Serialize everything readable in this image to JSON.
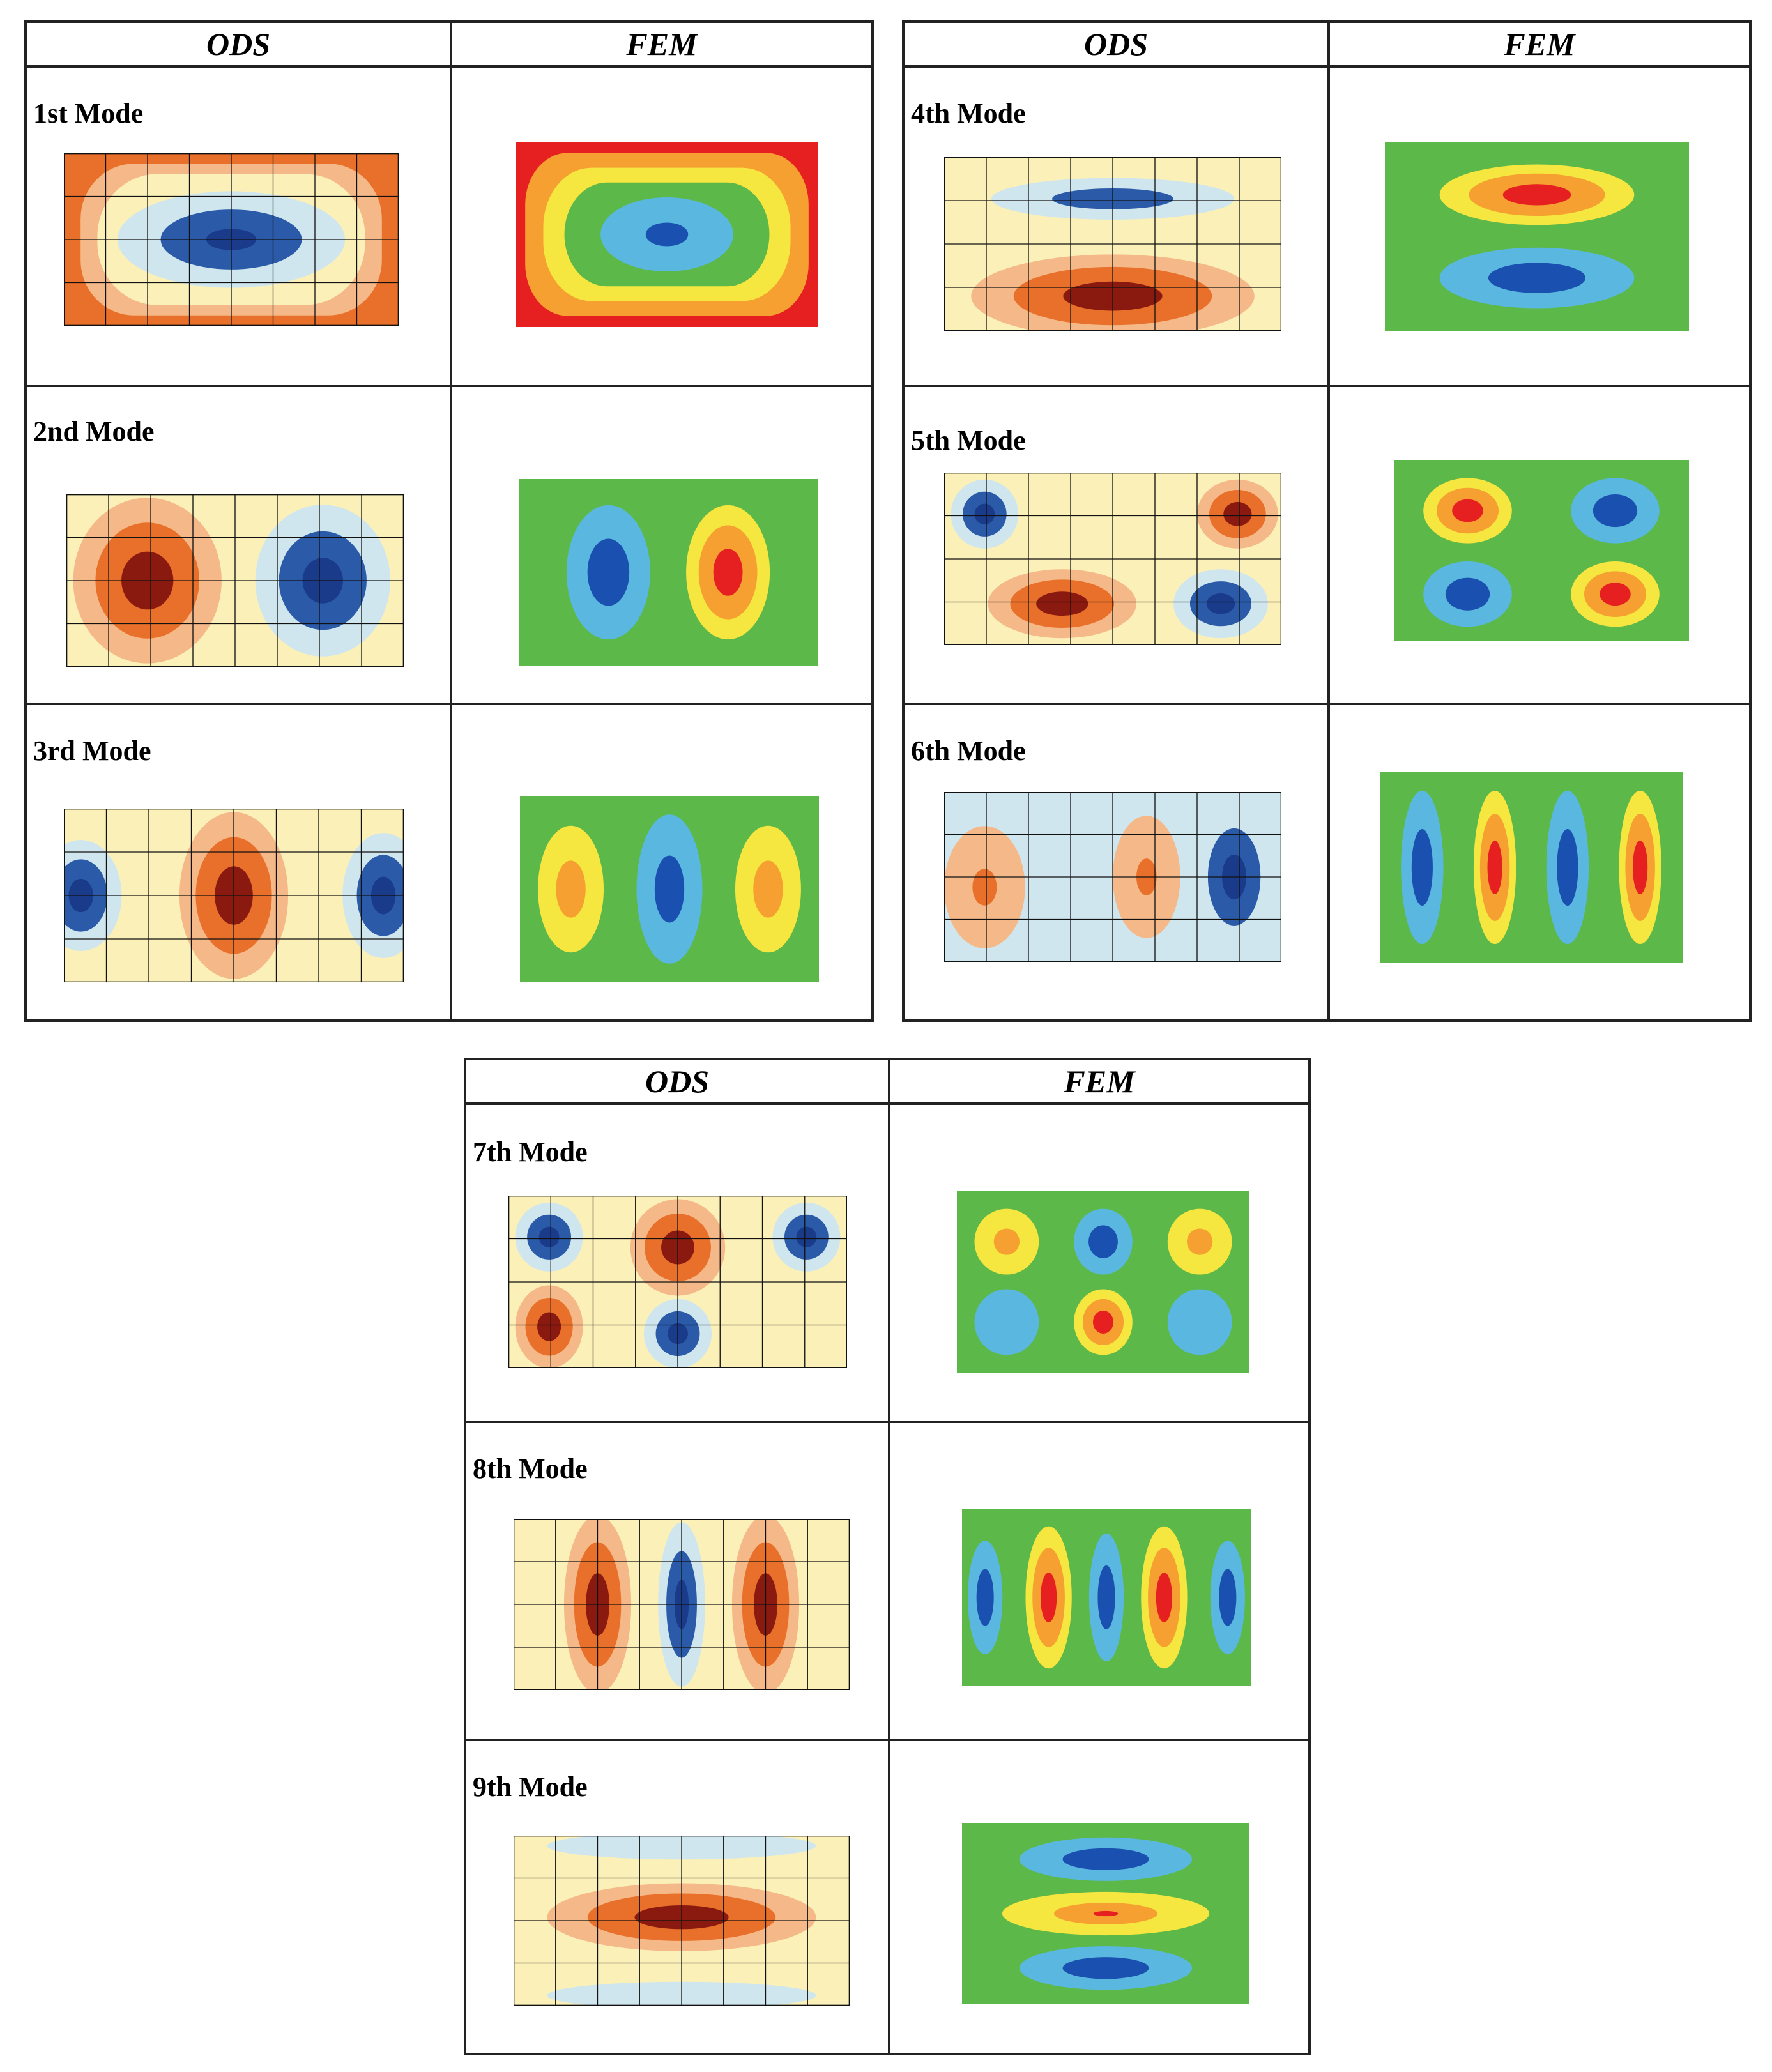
{
  "figure": {
    "column_headers": [
      "ODS",
      "FEM"
    ],
    "modes": [
      {
        "label": "1st Mode",
        "ods": "ods1",
        "fem": "fem1"
      },
      {
        "label": "2nd Mode",
        "ods": "ods2",
        "fem": "fem2"
      },
      {
        "label": "3rd Mode",
        "ods": "ods3",
        "fem": "fem3"
      },
      {
        "label": "4th Mode",
        "ods": "ods4",
        "fem": "fem4"
      },
      {
        "label": "5th Mode",
        "ods": "ods5",
        "fem": "fem5"
      },
      {
        "label": "6th Mode",
        "ods": "ods6",
        "fem": "fem6"
      },
      {
        "label": "7th Mode",
        "ods": "ods7",
        "fem": "fem7"
      },
      {
        "label": "8th Mode",
        "ods": "ods8",
        "fem": "fem8"
      },
      {
        "label": "9th Mode",
        "ods": "ods9",
        "fem": "fem9"
      }
    ]
  },
  "colors": {
    "fem_background": "#5cb848",
    "fem_red": "#e62020",
    "fem_orange": "#f5a030",
    "fem_yellow": "#f5e640",
    "fem_lightblue": "#5ab8e0",
    "fem_blue": "#1a50b0",
    "ods_darkred": "#8a1a10",
    "ods_orange": "#e8702a",
    "ods_lightorange": "#f5b888",
    "ods_cream": "#fbf0b8",
    "ods_paleblue": "#cfe6ee",
    "ods_blue": "#2a5aa8",
    "ods_darkblue": "#1a3a8a"
  }
}
